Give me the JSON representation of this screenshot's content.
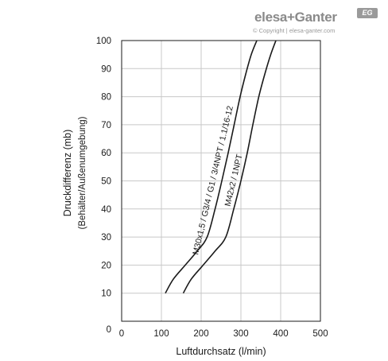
{
  "brand": {
    "name": "elesa+Ganter",
    "badge": "EG",
    "copyright": "© Copyright | elesa-ganter.com"
  },
  "chart_data": {
    "type": "line",
    "title": "",
    "xlabel": "Luftdurchsatz (l/min)",
    "ylabel": "Druckdifferenz (mb)",
    "ylabel_sub": "(Behälter/Außenumgebung)",
    "xlim": [
      0,
      500
    ],
    "ylim": [
      0,
      100
    ],
    "x_ticks": [
      0,
      100,
      200,
      300,
      400,
      500
    ],
    "y_ticks": [
      10,
      20,
      30,
      40,
      50,
      60,
      70,
      80,
      90,
      100
    ],
    "grid": true,
    "series": [
      {
        "name": "M30x1,5 / G3/4 / G1 / 3/4NPT / 1.1/16-12",
        "x": [
          110,
          130,
          160,
          190,
          215,
          235,
          252,
          268,
          283,
          298,
          312,
          326,
          340
        ],
        "y": [
          10,
          15,
          20,
          25,
          30,
          40,
          50,
          60,
          70,
          80,
          88,
          95,
          100
        ]
      },
      {
        "name": "M42x2 / 1NPT",
        "x": [
          155,
          175,
          205,
          235,
          262,
          282,
          300,
          316,
          330,
          345,
          360,
          375,
          388
        ],
        "y": [
          10,
          15,
          20,
          25,
          30,
          40,
          50,
          60,
          70,
          80,
          88,
          95,
          100
        ]
      }
    ]
  }
}
